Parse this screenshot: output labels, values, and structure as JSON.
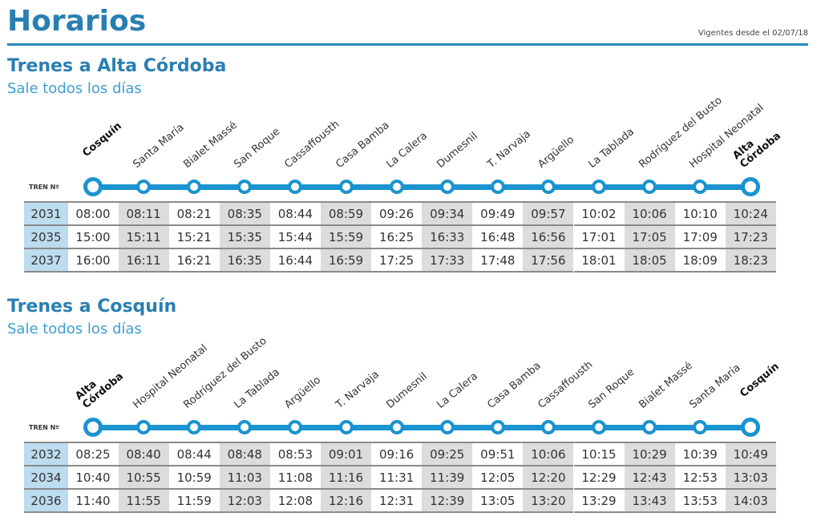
{
  "header": {
    "title": "Horarios",
    "valid_from": "Vigentes desde el 02/07/18"
  },
  "colors": {
    "brand_blue": "#2a7fb2",
    "line_blue": "#1a93d0",
    "train_cell": "#bcdcef",
    "shaded_cell": "#dcdcdc"
  },
  "sections": [
    {
      "title": "Trenes a Alta Córdoba",
      "subtitle": "Sale todos los días",
      "train_label": "TREN Nº",
      "stations": [
        "Cosquín",
        "Santa María",
        "Bialet Massé",
        "San Roque",
        "Cassaffousth",
        "Casa Bamba",
        "La Calera",
        "Dumesnil",
        "T. Narvaja",
        "Argüello",
        "La Tablada",
        "Rodríguez del Busto",
        "Hospital Neonatal",
        "Alta\nCórdoba"
      ],
      "rows": [
        {
          "train": "2031",
          "times": [
            "08:00",
            "08:11",
            "08:21",
            "08:35",
            "08:44",
            "08:59",
            "09:26",
            "09:34",
            "09:49",
            "09:57",
            "10:02",
            "10:06",
            "10:10",
            "10:24"
          ]
        },
        {
          "train": "2035",
          "times": [
            "15:00",
            "15:11",
            "15:21",
            "15:35",
            "15:44",
            "15:59",
            "16:25",
            "16:33",
            "16:48",
            "16:56",
            "17:01",
            "17:05",
            "17:09",
            "17:23"
          ]
        },
        {
          "train": "2037",
          "times": [
            "16:00",
            "16:11",
            "16:21",
            "16:35",
            "16:44",
            "16:59",
            "17:25",
            "17:33",
            "17:48",
            "17:56",
            "18:01",
            "18:05",
            "18:09",
            "18:23"
          ]
        }
      ]
    },
    {
      "title": "Trenes a Cosquín",
      "subtitle": "Sale todos los días",
      "train_label": "TREN Nº",
      "stations": [
        "Alta\nCórdoba",
        "Hospital Neonatal",
        "Rodríguez del Busto",
        "La Tablada",
        "Argüello",
        "T. Narvaja",
        "Dumesnil",
        "La Calera",
        "Casa Bamba",
        "Cassaffousth",
        "San Roque",
        "Bialet Massé",
        "Santa María",
        "Cosquín"
      ],
      "rows": [
        {
          "train": "2032",
          "times": [
            "08:25",
            "08:40",
            "08:44",
            "08:48",
            "08:53",
            "09:01",
            "09:16",
            "09:25",
            "09:51",
            "10:06",
            "10:15",
            "10:29",
            "10:39",
            "10:49"
          ]
        },
        {
          "train": "2034",
          "times": [
            "10:40",
            "10:55",
            "10:59",
            "11:03",
            "11:08",
            "11:16",
            "11:31",
            "11:39",
            "12:05",
            "12:20",
            "12:29",
            "12:43",
            "12:53",
            "13:03"
          ]
        },
        {
          "train": "2036",
          "times": [
            "11:40",
            "11:55",
            "11:59",
            "12:03",
            "12:08",
            "12:16",
            "12:31",
            "12:39",
            "13:05",
            "13:20",
            "13:29",
            "13:43",
            "13:53",
            "14:03"
          ]
        }
      ]
    }
  ]
}
